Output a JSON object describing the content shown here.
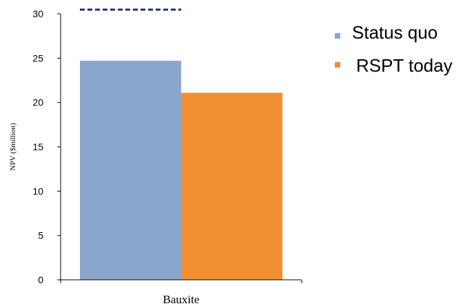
{
  "chart_data": {
    "type": "bar",
    "categories": [
      "Bauxite"
    ],
    "series": [
      {
        "name": "Status quo",
        "values": [
          24.7
        ],
        "color": "#8aa6cd"
      },
      {
        "name": "RSPT today",
        "values": [
          21.1
        ],
        "color": "#f28f33"
      }
    ],
    "reference_line": {
      "value": 30.6,
      "style": "dashed",
      "color": "#1f2f6e"
    },
    "ylabel": "NPV ($million)",
    "xlabel": "",
    "ylim": [
      0,
      30
    ],
    "yticks": [
      0,
      5,
      10,
      15,
      20,
      25,
      30
    ],
    "grid": false,
    "legend_position": "right"
  }
}
